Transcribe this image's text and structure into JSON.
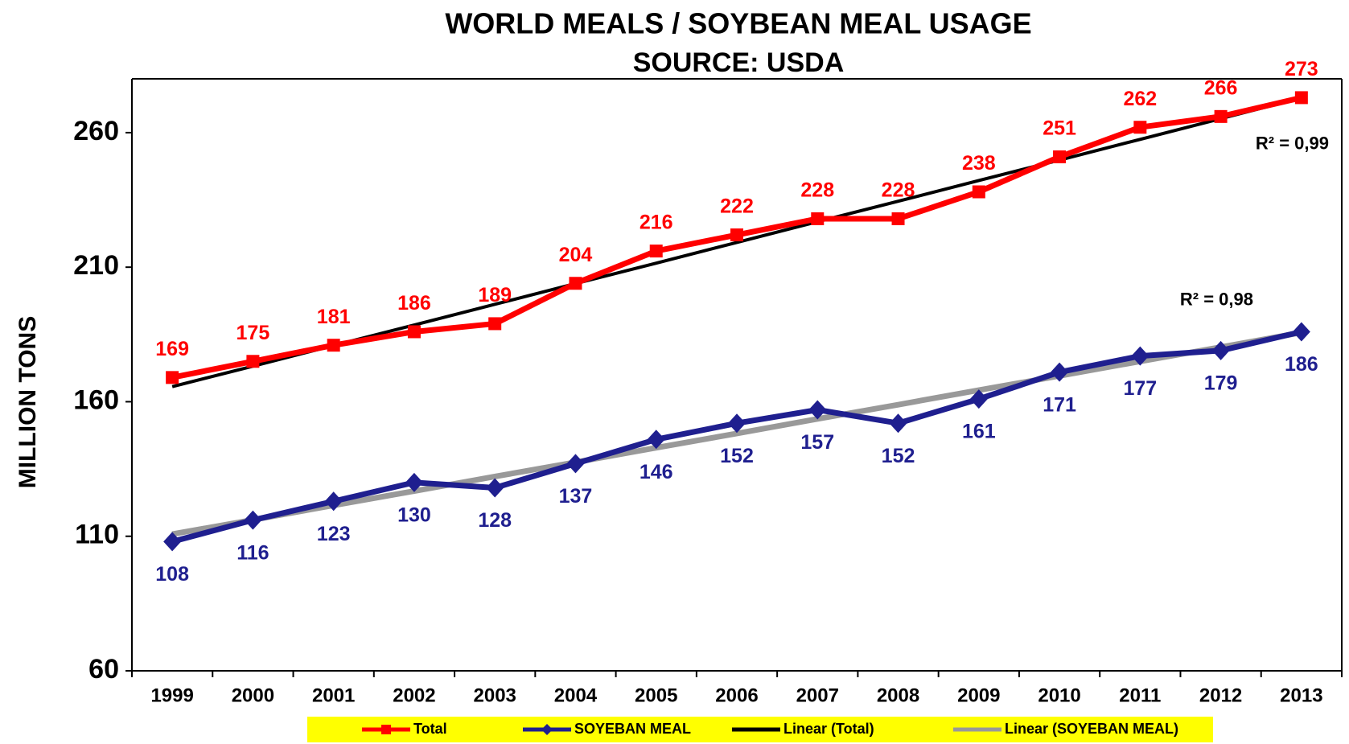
{
  "chart_data": {
    "type": "line",
    "title": "WORLD MEALS / SOYBEAN MEAL USAGE",
    "subtitle": "SOURCE: USDA",
    "y_label": "MILLION TONS",
    "categories": [
      "1999",
      "2000",
      "2001",
      "2002",
      "2003",
      "2004",
      "2005",
      "2006",
      "2007",
      "2008",
      "2009",
      "2010",
      "2011",
      "2012",
      "2013"
    ],
    "series": [
      {
        "name": "Total",
        "color": "#ff0000",
        "marker": "square",
        "values": [
          169,
          175,
          181,
          186,
          189,
          204,
          216,
          222,
          228,
          228,
          238,
          251,
          262,
          266,
          273
        ],
        "labels_side": "above"
      },
      {
        "name": "SOYEBAN MEAL",
        "color": "#1f1f8f",
        "marker": "diamond",
        "values": [
          108,
          116,
          123,
          130,
          128,
          137,
          146,
          152,
          157,
          152,
          161,
          171,
          177,
          179,
          186
        ],
        "labels_side": "below"
      },
      {
        "name": "Linear (Total)",
        "color": "#000000",
        "marker": "none",
        "values": [
          165.6,
          173.2,
          180.9,
          188.5,
          196.2,
          203.9,
          211.5,
          219.2,
          226.9,
          234.5,
          242.2,
          249.8,
          257.5,
          265.2,
          272.9
        ],
        "annotation": "R² = 0,99"
      },
      {
        "name": "Linear (SOYEBAN MEAL)",
        "color": "#999999",
        "marker": "none",
        "values": [
          110.8,
          116.1,
          121.5,
          126.8,
          132.2,
          137.5,
          142.9,
          148.2,
          153.6,
          158.9,
          164.3,
          169.6,
          175.0,
          180.3,
          185.7
        ],
        "annotation": "R² = 0,98"
      }
    ],
    "ylim": [
      60,
      280
    ],
    "yticks": [
      60,
      110,
      160,
      210,
      260
    ],
    "grid": false,
    "legend": "bottom"
  }
}
